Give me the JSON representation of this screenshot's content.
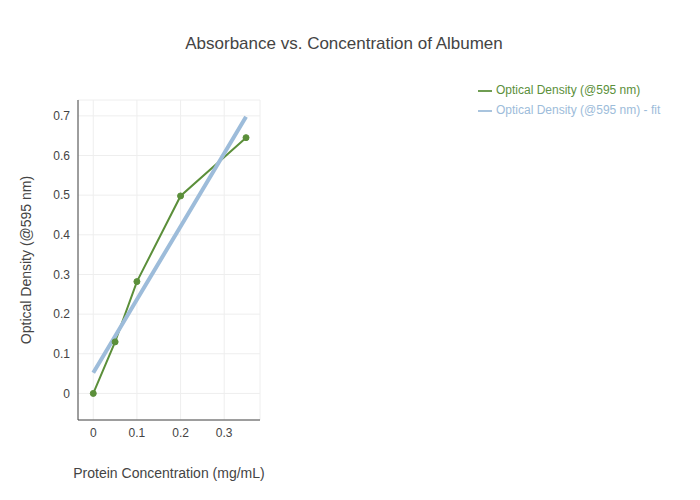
{
  "chart_data": {
    "type": "line",
    "title": "Absorbance vs. Concentration of Albumen",
    "x_label": "Protein Concentration (mg/mL)",
    "y_label": "Optical Density (@595 nm)",
    "x": [
      0,
      0.05,
      0.1,
      0.2,
      0.35
    ],
    "series": [
      {
        "name": "Optical Density (@595 nm)",
        "color": "#5b8f3a",
        "values": [
          0,
          0.13,
          0.282,
          0.498,
          0.645
        ],
        "marker": "circle",
        "line_style": "solid"
      },
      {
        "name": "Optical Density (@595 nm) - fit",
        "color": "#9dbcda",
        "values": [
          0.052,
          0.144,
          0.237,
          0.421,
          0.698
        ],
        "marker": "none",
        "line_style": "solid"
      }
    ],
    "xlim": [
      -0.035,
      0.382
    ],
    "ylim": [
      -0.067,
      0.74
    ],
    "xticks": [
      0,
      0.1,
      0.2,
      0.3
    ],
    "yticks": [
      0,
      0.1,
      0.2,
      0.3,
      0.4,
      0.5,
      0.6,
      0.7
    ],
    "grid": true,
    "legend": "top right"
  }
}
